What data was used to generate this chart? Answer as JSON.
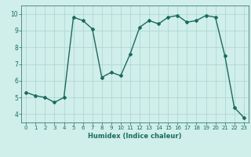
{
  "x": [
    0,
    1,
    2,
    3,
    4,
    5,
    6,
    7,
    8,
    9,
    10,
    11,
    12,
    13,
    14,
    15,
    16,
    17,
    18,
    19,
    20,
    21,
    22,
    23
  ],
  "y": [
    5.3,
    5.1,
    5.0,
    4.7,
    5.0,
    9.8,
    9.6,
    9.1,
    6.2,
    6.5,
    6.3,
    7.6,
    9.2,
    9.6,
    9.4,
    9.8,
    9.9,
    9.5,
    9.6,
    9.9,
    9.8,
    7.5,
    4.4,
    3.8
  ],
  "xlabel": "Humidex (Indice chaleur)",
  "ylim": [
    3.5,
    10.5
  ],
  "xlim": [
    -0.5,
    23.5
  ],
  "yticks": [
    4,
    5,
    6,
    7,
    8,
    9,
    10
  ],
  "xticks": [
    0,
    1,
    2,
    3,
    4,
    5,
    6,
    7,
    8,
    9,
    10,
    11,
    12,
    13,
    14,
    15,
    16,
    17,
    18,
    19,
    20,
    21,
    22,
    23
  ],
  "line_color": "#1a6b5e",
  "bg_color": "#d0eeea",
  "grid_color": "#aad4cc",
  "marker": "D",
  "marker_size": 2.0,
  "line_width": 1.0,
  "tick_fontsize_x": 5.0,
  "tick_fontsize_y": 5.5,
  "xlabel_fontsize": 6.0
}
